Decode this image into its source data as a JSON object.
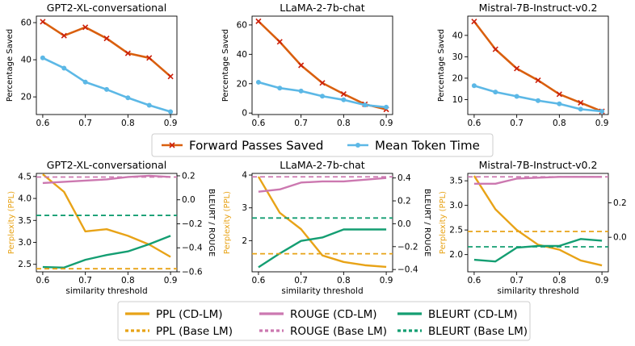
{
  "colors": {
    "forward": "#d95f0e",
    "forward_marker": "#cc1f0a",
    "mean": "#5cb8e6",
    "ppl": "#e8a317",
    "rouge": "#cc78b0",
    "bleurt": "#149e72",
    "axis": "#000000"
  },
  "legend_top": {
    "items": [
      {
        "label": "Forward Passes Saved",
        "color_key": "forward",
        "style": "line-x"
      },
      {
        "label": "Mean Token Time",
        "color_key": "mean",
        "style": "line-dot"
      }
    ]
  },
  "legend_bottom": {
    "items": [
      {
        "label": "PPL (CD-LM)",
        "color_key": "ppl",
        "style": "solid"
      },
      {
        "label": "ROUGE (CD-LM)",
        "color_key": "rouge",
        "style": "solid"
      },
      {
        "label": "BLEURT (CD-LM)",
        "color_key": "bleurt",
        "style": "solid"
      },
      {
        "label": "PPL (Base LM)",
        "color_key": "ppl",
        "style": "dotted"
      },
      {
        "label": "ROUGE (Base LM)",
        "color_key": "rouge",
        "style": "dotted"
      },
      {
        "label": "BLEURT (Base LM)",
        "color_key": "bleurt",
        "style": "dotted"
      }
    ]
  },
  "chart_data": [
    {
      "type": "line",
      "title": "GPT2-XL-conversational",
      "ylabel": "Percentage Saved",
      "xlabel": "",
      "x": [
        0.6,
        0.65,
        0.7,
        0.75,
        0.8,
        0.85,
        0.9
      ],
      "xlim": [
        0.585,
        0.915
      ],
      "ylim": [
        10.5,
        63.5
      ],
      "xticks": [
        "0.6",
        "0.7",
        "0.8",
        "0.9"
      ],
      "yticks": [
        20,
        40,
        60
      ],
      "series": [
        {
          "name": "Forward Passes Saved",
          "values": [
            60.5,
            53,
            57.5,
            51.5,
            43.5,
            41,
            31
          ]
        },
        {
          "name": "Mean Token Time",
          "values": [
            41,
            35.5,
            28,
            24,
            19.5,
            15.5,
            12
          ]
        }
      ]
    },
    {
      "type": "line",
      "title": "LLaMA-2-7b-chat",
      "ylabel": "Percentage Saved",
      "xlabel": "",
      "x": [
        0.6,
        0.65,
        0.7,
        0.75,
        0.8,
        0.85,
        0.9
      ],
      "xlim": [
        0.585,
        0.915
      ],
      "ylim": [
        -1,
        66
      ],
      "xticks": [
        "0.6",
        "0.7",
        "0.8",
        "0.9"
      ],
      "yticks": [
        0,
        20,
        40,
        60
      ],
      "series": [
        {
          "name": "Forward Passes Saved",
          "values": [
            62.5,
            48.5,
            32.5,
            20.5,
            13,
            6,
            2.5
          ]
        },
        {
          "name": "Mean Token Time",
          "values": [
            21,
            17,
            15,
            11.5,
            9,
            5.5,
            4
          ]
        }
      ]
    },
    {
      "type": "line",
      "title": "Mistral-7B-Instruct-v0.2",
      "ylabel": "Percentage Saved",
      "xlabel": "",
      "x": [
        0.6,
        0.65,
        0.7,
        0.75,
        0.8,
        0.85,
        0.9
      ],
      "xlim": [
        0.585,
        0.915
      ],
      "ylim": [
        3,
        49
      ],
      "xticks": [
        "0.6",
        "0.7",
        "0.8",
        "0.9"
      ],
      "yticks": [
        10,
        20,
        30,
        40
      ],
      "series": [
        {
          "name": "Forward Passes Saved",
          "values": [
            46.5,
            33.5,
            24.5,
            19,
            12.5,
            8.5,
            4.5
          ]
        },
        {
          "name": "Mean Token Time",
          "values": [
            16.5,
            13.5,
            11.5,
            9.5,
            8,
            5.5,
            4.5
          ]
        }
      ]
    },
    {
      "type": "line",
      "title": "GPT2-XL-conversational",
      "ylabel": "Perplexity (PPL)",
      "ylabel_right": "BLEURT / ROUGE",
      "xlabel": "similarity threshold",
      "x": [
        0.6,
        0.65,
        0.7,
        0.75,
        0.8,
        0.85,
        0.9
      ],
      "xlim": [
        0.585,
        0.915
      ],
      "ylim": [
        2.33,
        4.57
      ],
      "ylim_right": [
        -0.6,
        0.22
      ],
      "xticks": [
        "0.6",
        "0.7",
        "0.8",
        "0.9"
      ],
      "yticks": [
        "2.5",
        "3.0",
        "3.5",
        "4.0",
        "4.5"
      ],
      "yticks_right": [
        "−0.6",
        "−0.4",
        "−0.2",
        "0.0",
        "0.2"
      ],
      "series": [
        {
          "name": "PPL (CD-LM)",
          "axis": "left",
          "values": [
            4.55,
            4.15,
            3.25,
            3.3,
            3.15,
            2.95,
            2.67
          ]
        },
        {
          "name": "ROUGE (CD-LM)",
          "axis": "right",
          "values": [
            0.14,
            0.15,
            0.16,
            0.17,
            0.19,
            0.2,
            0.19
          ]
        },
        {
          "name": "BLEURT (CD-LM)",
          "axis": "right",
          "values": [
            -0.56,
            -0.565,
            -0.5,
            -0.46,
            -0.43,
            -0.37,
            -0.3
          ]
        },
        {
          "name": "PPL (Base LM)",
          "axis": "left",
          "baseline": 2.4
        },
        {
          "name": "ROUGE (Base LM)",
          "axis": "right",
          "baseline": 0.19
        },
        {
          "name": "BLEURT (Base LM)",
          "axis": "right",
          "baseline": -0.13
        }
      ]
    },
    {
      "type": "line",
      "title": "LLaMA-2-7b-chat",
      "ylabel": "Perplexity (PPL)",
      "ylabel_right": "BLEURT / ROUGE",
      "xlabel": "similarity threshold",
      "x": [
        0.6,
        0.65,
        0.7,
        0.75,
        0.8,
        0.85,
        0.9
      ],
      "xlim": [
        0.585,
        0.915
      ],
      "ylim": [
        1.05,
        4.05
      ],
      "ylim_right": [
        -0.42,
        0.44
      ],
      "xticks": [
        "0.6",
        "0.7",
        "0.8",
        "0.9"
      ],
      "yticks": [
        "2",
        "3",
        "4"
      ],
      "yticks_right": [
        "−0.4",
        "−0.2",
        "0.0",
        "0.2",
        "0.4"
      ],
      "series": [
        {
          "name": "PPL (CD-LM)",
          "axis": "left",
          "values": [
            3.95,
            2.85,
            2.35,
            1.55,
            1.35,
            1.25,
            1.2
          ]
        },
        {
          "name": "ROUGE (CD-LM)",
          "axis": "right",
          "values": [
            0.28,
            0.3,
            0.36,
            0.37,
            0.37,
            0.385,
            0.4
          ]
        },
        {
          "name": "BLEURT (CD-LM)",
          "axis": "right",
          "values": [
            -0.38,
            -0.26,
            -0.15,
            -0.12,
            -0.05,
            -0.05,
            -0.05
          ]
        },
        {
          "name": "PPL (Base LM)",
          "axis": "left",
          "baseline": 1.6
        },
        {
          "name": "ROUGE (Base LM)",
          "axis": "right",
          "baseline": 0.41
        },
        {
          "name": "BLEURT (Base LM)",
          "axis": "right",
          "baseline": 0.05
        }
      ]
    },
    {
      "type": "line",
      "title": "Mistral-7B-Instruct-v0.2",
      "ylabel": "Perplexity (PPL)",
      "ylabel_right": "BLEURT / ROUGE",
      "xlabel": "similarity threshold",
      "x": [
        0.6,
        0.65,
        0.7,
        0.75,
        0.8,
        0.85,
        0.9
      ],
      "xlim": [
        0.585,
        0.915
      ],
      "ylim": [
        1.65,
        3.65
      ],
      "ylim_right": [
        -0.2,
        0.37
      ],
      "xticks": [
        "0.6",
        "0.7",
        "0.8",
        "0.9"
      ],
      "yticks": [
        "2.0",
        "2.5",
        "3.0",
        "3.5"
      ],
      "yticks_right": [
        "0.0",
        "0.2"
      ],
      "series": [
        {
          "name": "PPL (CD-LM)",
          "axis": "left",
          "values": [
            3.6,
            2.92,
            2.5,
            2.2,
            2.1,
            1.88,
            1.78
          ]
        },
        {
          "name": "ROUGE (CD-LM)",
          "axis": "right",
          "values": [
            0.31,
            0.31,
            0.34,
            0.345,
            0.35,
            0.35,
            0.35
          ]
        },
        {
          "name": "BLEURT (CD-LM)",
          "axis": "right",
          "values": [
            -0.13,
            -0.14,
            -0.06,
            -0.05,
            -0.05,
            -0.01,
            -0.02
          ]
        },
        {
          "name": "PPL (Base LM)",
          "axis": "left",
          "baseline": 2.47
        },
        {
          "name": "ROUGE (Base LM)",
          "axis": "right",
          "baseline": 0.35
        },
        {
          "name": "BLEURT (Base LM)",
          "axis": "right",
          "baseline": -0.055
        }
      ]
    }
  ]
}
